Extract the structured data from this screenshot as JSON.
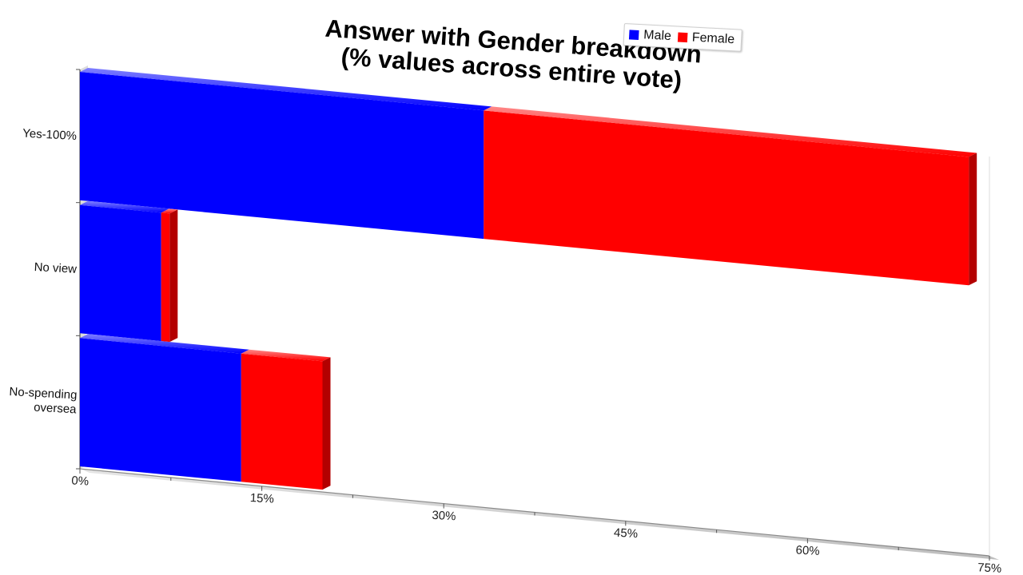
{
  "chart_data": {
    "type": "bar",
    "orientation": "horizontal",
    "stacked": true,
    "three_d": true,
    "title": "Answer with Gender breakdown\n(% values across entire vote)",
    "title_lines": [
      "Answer with Gender breakdown",
      "(% values across entire vote)"
    ],
    "categories": [
      "Yes-100%",
      "No view",
      "No-spending oversea"
    ],
    "category_label_lines": [
      [
        "Yes-100%"
      ],
      [
        "No view"
      ],
      [
        "No-spending",
        "oversea"
      ]
    ],
    "series": [
      {
        "name": "Male",
        "color": "#0000ff",
        "values": [
          33.3,
          6.7,
          13.3
        ]
      },
      {
        "name": "Female",
        "color": "#ff0000",
        "values": [
          40.0,
          0.7,
          6.7
        ]
      }
    ],
    "x_axis": {
      "range": [
        0,
        75
      ],
      "ticks": [
        "0%",
        "15%",
        "30%",
        "45%",
        "60%",
        "75%"
      ]
    },
    "legend": {
      "position": "top-right",
      "items": [
        "Male",
        "Female"
      ]
    },
    "grid": false
  }
}
